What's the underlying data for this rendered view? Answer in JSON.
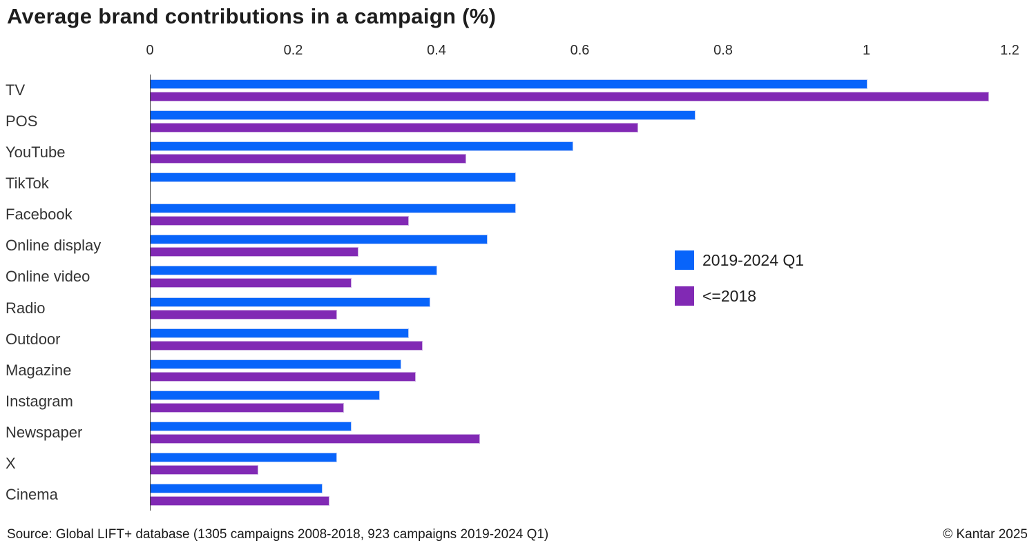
{
  "title": "Average brand contributions in a campaign (%)",
  "legend": {
    "items": [
      {
        "label": "2019-2024 Q1",
        "color": "#0864fa"
      },
      {
        "label": "<=2018",
        "color": "#8129b4"
      }
    ]
  },
  "footer": {
    "source": "Source: Global LIFT+ database (1305 campaigns 2008-2018, 923 campaigns 2019-2024 Q1)",
    "copyright": "© Kantar 2025"
  },
  "colors": {
    "blue": "#0864fa",
    "blue_light": "#b9ccf7",
    "purple": "#8129b4",
    "purple_light": "#cdaee2",
    "axis": "#3f3f3f"
  },
  "chart_data": {
    "type": "bar",
    "orientation": "horizontal",
    "title": "Average brand contributions in a campaign (%)",
    "xlabel": "",
    "ylabel": "",
    "xlim": [
      0,
      1.2
    ],
    "xticks": [
      0,
      0.2,
      0.4,
      0.6,
      0.8,
      1,
      1.2
    ],
    "xtick_labels": [
      "0",
      "0.2",
      "0.4",
      "0.6",
      "0.8",
      "1",
      "1.2"
    ],
    "grid": false,
    "legend_position": "right-middle",
    "categories": [
      "TV",
      "POS",
      "YouTube",
      "TikTok",
      "Facebook",
      "Online display",
      "Online video",
      "Radio",
      "Outdoor",
      "Magazine",
      "Instagram",
      "Newspaper",
      "X",
      "Cinema"
    ],
    "series": [
      {
        "name": "2019-2024 Q1",
        "color": "#0864fa",
        "values": [
          1.0,
          0.76,
          0.59,
          0.51,
          0.51,
          0.47,
          0.4,
          0.39,
          0.36,
          0.35,
          0.32,
          0.28,
          0.26,
          0.24
        ]
      },
      {
        "name": "<=2018",
        "color": "#8129b4",
        "values": [
          1.17,
          0.68,
          0.44,
          null,
          0.36,
          0.29,
          0.28,
          0.26,
          0.38,
          0.37,
          0.27,
          0.46,
          0.15,
          0.25
        ]
      }
    ]
  }
}
